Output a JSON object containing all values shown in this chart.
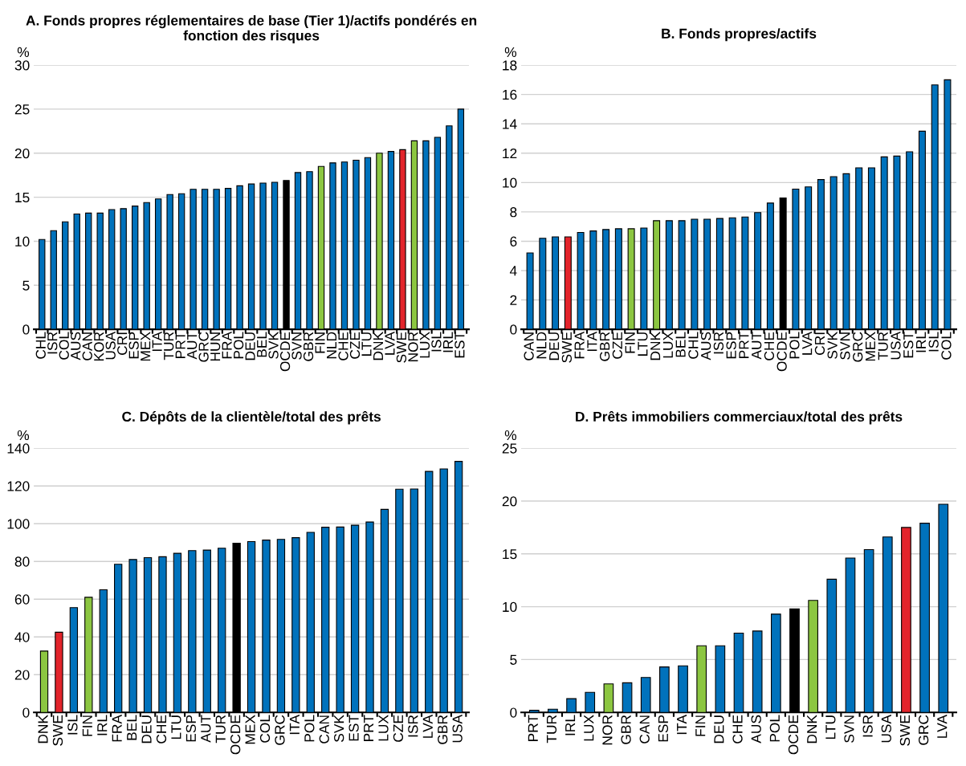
{
  "chart_data": [
    {
      "type": "bar",
      "title": "A. Fonds propres réglementaires de base (Tier 1)/actifs pondérés en fonction des risques",
      "ylabel": "%",
      "grid": "y",
      "ylim": [
        0,
        30
      ],
      "yticks": [
        0,
        5,
        10,
        15,
        20,
        25,
        30
      ],
      "categories": [
        "CHL",
        "ISR",
        "COL",
        "AUS",
        "CAN",
        "KOR",
        "USA",
        "CRI",
        "ESP",
        "MEX",
        "ITA",
        "TUR",
        "PRT",
        "AUT",
        "GRC",
        "HUN",
        "FRA",
        "POL",
        "DEU",
        "BEL",
        "SVK",
        "OCDE",
        "SVN",
        "GBR",
        "FIN",
        "NLD",
        "CHE",
        "CZE",
        "LTU",
        "DNK",
        "LVA",
        "SWE",
        "NOR",
        "LUX",
        "ISL",
        "IRL",
        "EST"
      ],
      "values": [
        10.2,
        11.2,
        12.2,
        13.1,
        13.2,
        13.2,
        13.6,
        13.7,
        14.0,
        14.4,
        14.8,
        15.3,
        15.4,
        15.9,
        15.9,
        15.9,
        16.0,
        16.3,
        16.5,
        16.6,
        16.7,
        16.9,
        17.8,
        17.9,
        18.5,
        18.9,
        19.0,
        19.2,
        19.5,
        20.0,
        20.2,
        20.4,
        21.4,
        21.4,
        21.8,
        23.1,
        25.0
      ],
      "colors": [
        "#0072bc",
        "#0072bc",
        "#0072bc",
        "#0072bc",
        "#0072bc",
        "#0072bc",
        "#0072bc",
        "#0072bc",
        "#0072bc",
        "#0072bc",
        "#0072bc",
        "#0072bc",
        "#0072bc",
        "#0072bc",
        "#0072bc",
        "#0072bc",
        "#0072bc",
        "#0072bc",
        "#0072bc",
        "#0072bc",
        "#0072bc",
        "#000000",
        "#0072bc",
        "#0072bc",
        "#8cc641",
        "#0072bc",
        "#0072bc",
        "#0072bc",
        "#0072bc",
        "#8cc641",
        "#0072bc",
        "#e3242b",
        "#8cc641",
        "#0072bc",
        "#0072bc",
        "#0072bc",
        "#0072bc"
      ]
    },
    {
      "type": "bar",
      "title": "B. Fonds propres/actifs",
      "ylabel": "%",
      "grid": "y",
      "ylim": [
        0,
        18
      ],
      "yticks": [
        0,
        2,
        4,
        6,
        8,
        10,
        12,
        14,
        16,
        18
      ],
      "categories": [
        "CAN",
        "NLD",
        "DEU",
        "SWE",
        "FRA",
        "ITA",
        "GBR",
        "CZE",
        "FIN",
        "LTU",
        "DNK",
        "LUX",
        "BEL",
        "CHL",
        "AUS",
        "ISR",
        "ESP",
        "PRT",
        "AUT",
        "CHE",
        "OCDE",
        "POL",
        "LVA",
        "CRI",
        "SVK",
        "SVN",
        "GRC",
        "MEX",
        "TUR",
        "USA",
        "EST",
        "IRL",
        "ISL",
        "COL"
      ],
      "values": [
        5.2,
        6.2,
        6.3,
        6.3,
        6.6,
        6.7,
        6.8,
        6.85,
        6.85,
        6.9,
        7.4,
        7.4,
        7.4,
        7.5,
        7.5,
        7.55,
        7.6,
        7.65,
        7.95,
        8.6,
        8.95,
        9.55,
        9.7,
        10.2,
        10.4,
        10.6,
        11.0,
        11.0,
        11.75,
        11.8,
        12.1,
        13.5,
        16.65,
        17.0
      ],
      "colors": [
        "#0072bc",
        "#0072bc",
        "#0072bc",
        "#e3242b",
        "#0072bc",
        "#0072bc",
        "#0072bc",
        "#0072bc",
        "#8cc641",
        "#0072bc",
        "#8cc641",
        "#0072bc",
        "#0072bc",
        "#0072bc",
        "#0072bc",
        "#0072bc",
        "#0072bc",
        "#0072bc",
        "#0072bc",
        "#0072bc",
        "#000000",
        "#0072bc",
        "#0072bc",
        "#0072bc",
        "#0072bc",
        "#0072bc",
        "#0072bc",
        "#0072bc",
        "#0072bc",
        "#0072bc",
        "#0072bc",
        "#0072bc",
        "#0072bc",
        "#0072bc"
      ]
    },
    {
      "type": "bar",
      "title": "C. Dépôts de la clientèle/total des prêts",
      "ylabel": "%",
      "grid": "y",
      "ylim": [
        0,
        140
      ],
      "yticks": [
        0,
        20,
        40,
        60,
        80,
        100,
        120,
        140
      ],
      "categories": [
        "DNK",
        "SWE",
        "ISL",
        "FIN",
        "IRL",
        "FRA",
        "BEL",
        "DEU",
        "CHE",
        "LTU",
        "ESP",
        "AUT",
        "TUR",
        "OCDE",
        "MEX",
        "COL",
        "GRC",
        "ITA",
        "POL",
        "CAN",
        "SVK",
        "EST",
        "PRT",
        "LUX",
        "CZE",
        "ISR",
        "LVA",
        "GBR",
        "USA"
      ],
      "values": [
        32.5,
        42.5,
        55.5,
        61,
        65,
        78.5,
        81,
        82,
        82.5,
        84.3,
        85.7,
        86,
        87,
        89.6,
        90.5,
        91.3,
        91.7,
        92.6,
        95.4,
        98.1,
        98.2,
        99.2,
        100.9,
        107.6,
        118.3,
        118.4,
        127.7,
        129,
        133
      ],
      "colors": [
        "#8cc641",
        "#e3242b",
        "#0072bc",
        "#8cc641",
        "#0072bc",
        "#0072bc",
        "#0072bc",
        "#0072bc",
        "#0072bc",
        "#0072bc",
        "#0072bc",
        "#0072bc",
        "#0072bc",
        "#000000",
        "#0072bc",
        "#0072bc",
        "#0072bc",
        "#0072bc",
        "#0072bc",
        "#0072bc",
        "#0072bc",
        "#0072bc",
        "#0072bc",
        "#0072bc",
        "#0072bc",
        "#0072bc",
        "#0072bc",
        "#0072bc",
        "#0072bc"
      ]
    },
    {
      "type": "bar",
      "title": "D. Prêts immobiliers commerciaux/total des prêts",
      "ylabel": "%",
      "grid": "y",
      "ylim": [
        0,
        25
      ],
      "yticks": [
        0,
        5,
        10,
        15,
        20,
        25
      ],
      "categories": [
        "PRT",
        "TUR",
        "IRL",
        "LUX",
        "NOR",
        "GBR",
        "CAN",
        "ESP",
        "ITA",
        "FIN",
        "DEU",
        "CHE",
        "AUS",
        "POL",
        "OCDE",
        "DNK",
        "LTU",
        "SVN",
        "ISR",
        "USA",
        "SWE",
        "GRC",
        "LVA"
      ],
      "values": [
        0.2,
        0.3,
        1.3,
        1.9,
        2.7,
        2.8,
        3.3,
        4.3,
        4.4,
        6.3,
        6.3,
        7.5,
        7.7,
        9.3,
        9.8,
        10.6,
        12.6,
        14.6,
        15.4,
        16.6,
        17.5,
        17.9,
        19.7
      ],
      "colors": [
        "#0072bc",
        "#0072bc",
        "#0072bc",
        "#0072bc",
        "#8cc641",
        "#0072bc",
        "#0072bc",
        "#0072bc",
        "#0072bc",
        "#8cc641",
        "#0072bc",
        "#0072bc",
        "#0072bc",
        "#0072bc",
        "#000000",
        "#8cc641",
        "#0072bc",
        "#0072bc",
        "#0072bc",
        "#0072bc",
        "#e3242b",
        "#0072bc",
        "#0072bc"
      ]
    }
  ]
}
